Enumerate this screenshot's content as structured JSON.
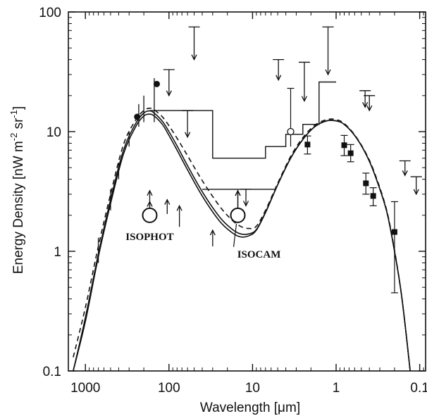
{
  "chart_data": {
    "type": "line",
    "xlabel": "Wavelength [μm]",
    "ylabel_parts": [
      "Energy Density [nW m",
      "-2",
      " sr",
      "-1",
      "]"
    ],
    "x_scale": "log",
    "x_reversed": true,
    "y_scale": "log",
    "xlim": [
      1600,
      0.085
    ],
    "ylim": [
      0.1,
      100
    ],
    "x_ticks": [
      {
        "value": 1000,
        "label": "1000"
      },
      {
        "value": 100,
        "label": "100"
      },
      {
        "value": 10,
        "label": "10"
      },
      {
        "value": 1,
        "label": "1"
      },
      {
        "value": 0.1,
        "label": "0.1"
      }
    ],
    "y_ticks": [
      {
        "value": 0.1,
        "label": "0.1"
      },
      {
        "value": 1,
        "label": "1"
      },
      {
        "value": 10,
        "label": "10"
      },
      {
        "value": 100,
        "label": "100"
      }
    ],
    "grid": false,
    "legend": "none",
    "series": [
      {
        "style": "solid",
        "x": [
          1400,
          1000,
          700,
          500,
          350,
          250,
          200,
          170,
          150,
          120,
          100,
          80,
          60,
          40,
          25,
          18,
          14,
          11,
          9,
          7,
          5,
          3.5,
          2.5,
          1.8,
          1.3,
          1.0,
          0.8,
          0.6,
          0.45,
          0.35,
          0.25,
          0.2,
          0.17,
          0.15,
          0.13
        ],
        "y": [
          0.1,
          0.26,
          0.9,
          2.5,
          6.5,
          11,
          13.5,
          14,
          13.5,
          11.5,
          9.3,
          7,
          4.8,
          2.9,
          1.8,
          1.45,
          1.32,
          1.35,
          1.5,
          2.1,
          3.6,
          6,
          8.6,
          11,
          12.3,
          12.3,
          11.5,
          9.3,
          6.7,
          4.5,
          2.2,
          1.0,
          0.5,
          0.25,
          0.1
        ]
      },
      {
        "style": "solid",
        "x": [
          1400,
          1000,
          700,
          500,
          350,
          250,
          200,
          170,
          150,
          120,
          100,
          80,
          60,
          40,
          25,
          18,
          14,
          11,
          9,
          7,
          5,
          3.5,
          2.5,
          1.8,
          1.3,
          1.0,
          0.8,
          0.6,
          0.45,
          0.35,
          0.25,
          0.2,
          0.17,
          0.15,
          0.13
        ],
        "y": [
          0.1,
          0.28,
          0.95,
          2.7,
          7.0,
          11.7,
          14.3,
          14.9,
          14.3,
          12.2,
          10,
          7.6,
          5.2,
          3.15,
          1.95,
          1.55,
          1.4,
          1.4,
          1.52,
          2.12,
          3.6,
          6,
          8.6,
          11,
          12.3,
          12.3,
          11.5,
          9.3,
          6.7,
          4.5,
          2.2,
          1.0,
          0.5,
          0.25,
          0.1
        ]
      },
      {
        "style": "dashed",
        "x": [
          1400,
          1000,
          700,
          500,
          350,
          250,
          200,
          170,
          150,
          120,
          100,
          80,
          60,
          40,
          25,
          18,
          14,
          11,
          9,
          7,
          5,
          3.5,
          2.5,
          1.8,
          1.3,
          1.0,
          0.8,
          0.6,
          0.45,
          0.35,
          0.25,
          0.2,
          0.17,
          0.15,
          0.13
        ],
        "y": [
          0.13,
          0.34,
          1.1,
          3.0,
          7.8,
          12.5,
          15,
          15.7,
          15.2,
          13.3,
          11.2,
          8.8,
          6.3,
          3.9,
          2.4,
          1.85,
          1.62,
          1.55,
          1.62,
          2.2,
          3.7,
          6.2,
          8.9,
          11.3,
          12.6,
          12.6,
          11.7,
          9.4,
          6.8,
          4.6,
          2.25,
          1.02,
          0.5,
          0.25,
          0.1
        ]
      }
    ],
    "points_filled_circle": [
      {
        "x": 240,
        "y": 13.3
      },
      {
        "x": 140,
        "y": 25
      }
    ],
    "points_filled_square": [
      {
        "x": 2.2,
        "y": 7.8,
        "err": [
          6.5,
          9.2
        ]
      },
      {
        "x": 0.8,
        "y": 7.7,
        "err": [
          6.3,
          9.3
        ]
      },
      {
        "x": 0.67,
        "y": 6.6,
        "err": [
          5.6,
          7.8
        ]
      },
      {
        "x": 0.44,
        "y": 3.7,
        "err": [
          3.0,
          4.5
        ]
      },
      {
        "x": 0.36,
        "y": 2.9,
        "err": [
          2.4,
          3.4
        ]
      },
      {
        "x": 0.2,
        "y": 1.45,
        "err": [
          0.45,
          2.6
        ]
      }
    ],
    "points_open_circle_small": [
      {
        "x": 3.5,
        "y": 10,
        "err": [
          7.5,
          23
        ]
      }
    ],
    "annotated_points": [
      {
        "label": "ISOPHOT",
        "x": 170,
        "y": 2.0
      },
      {
        "label": "ISOCAM",
        "x": 15,
        "y": 2.0
      }
    ],
    "upper_limits": [
      {
        "x": 50,
        "y_top": 75,
        "y_bottom": 40
      },
      {
        "x": 100,
        "y_top": 33,
        "y_bottom": 20
      },
      {
        "x": 60,
        "y_top": 15,
        "y_bottom": 9
      },
      {
        "x": 12,
        "y_top": 3.3,
        "y_bottom": 2.4
      },
      {
        "x": 4.9,
        "y_top": 40,
        "y_bottom": 27
      },
      {
        "x": 2.4,
        "y_top": 38,
        "y_bottom": 18
      },
      {
        "x": 1.25,
        "y_top": 75,
        "y_bottom": 30
      },
      {
        "x": 0.45,
        "y_top": 22,
        "y_bottom": 16
      },
      {
        "x": 0.4,
        "y_top": 20,
        "y_bottom": 15
      },
      {
        "x": 0.15,
        "y_top": 5.7,
        "y_bottom": 4.3
      },
      {
        "x": 0.11,
        "y_top": 4.2,
        "y_bottom": 3.0
      }
    ],
    "lower_limits": [
      {
        "x": 75,
        "y_bottom": 1.6,
        "y_top": 2.4
      },
      {
        "x": 105,
        "y_bottom": 2.05,
        "y_top": 2.7
      },
      {
        "x": 30,
        "y_bottom": 1.1,
        "y_top": 1.5
      },
      {
        "x": 170,
        "y_bottom": 2.1,
        "y_top": 2.6
      },
      {
        "x": 15,
        "y_bottom": 2.2,
        "y_top": 3.2
      }
    ],
    "step_limits": [
      {
        "x": [
          170,
          100,
          100,
          40,
          40,
          30,
          30,
          12,
          12,
          7,
          7,
          4,
          4,
          2.5,
          2.5,
          1.6,
          1.6,
          1.0
        ],
        "y": [
          15,
          15,
          15,
          15,
          15,
          15,
          6,
          6,
          6,
          6,
          7.5,
          7.5,
          9.5,
          9.5,
          11.5,
          11.5,
          26,
          26
        ]
      },
      {
        "x": [
          40,
          5.5
        ],
        "y": [
          3.3,
          3.3
        ]
      }
    ],
    "fir_spread": [
      {
        "x": 700,
        "lo": 0.8,
        "hi": 1.3
      },
      {
        "x": 500,
        "lo": 2.2,
        "hi": 3.3
      },
      {
        "x": 400,
        "lo": 4.0,
        "hi": 5.5
      },
      {
        "x": 300,
        "lo": 7.5,
        "hi": 10
      },
      {
        "x": 230,
        "lo": 11,
        "hi": 17
      },
      {
        "x": 200,
        "lo": 12,
        "hi": 20
      },
      {
        "x": 150,
        "lo": 12,
        "hi": 28
      }
    ]
  }
}
